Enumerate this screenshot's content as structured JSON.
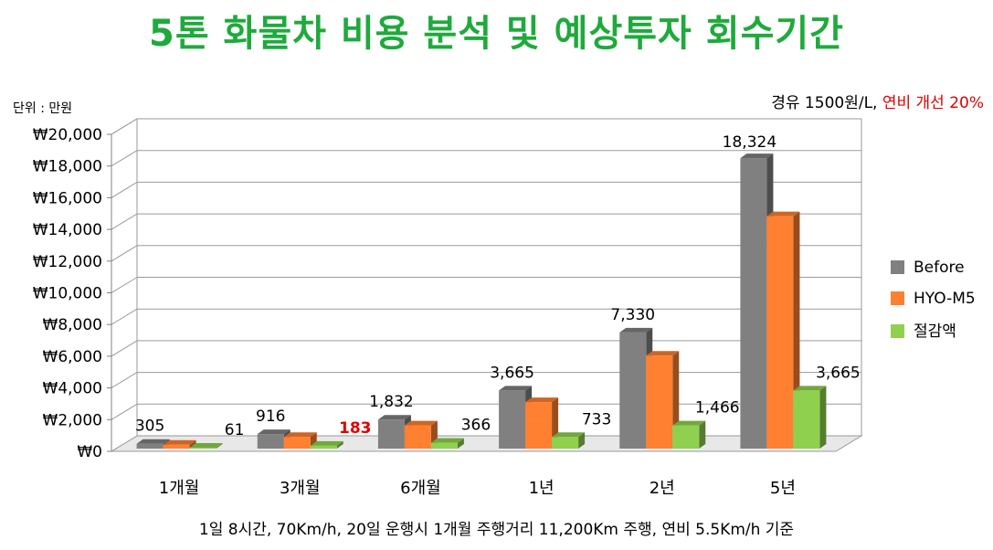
{
  "title": "5톤 화물차 비용 분석 및 예상투자 회수기간",
  "unit_label": "단위 : 만원",
  "condition": {
    "fuel": "경유 1500원/L, ",
    "improvement": "연비 개선 20%"
  },
  "footnote": "1일 8시간, 70Km/h, 20일 운행시 1개월 주행거리 11,200Km 주행, 연비 5.5Km/h 기준",
  "colors": {
    "title": "#1eaa3c",
    "before": "#808080",
    "hyo": "#ff8030",
    "saving": "#8fd14f",
    "highlight": "#e00000"
  },
  "chart_data": {
    "type": "bar",
    "categories": [
      "1개월",
      "3개월",
      "6개월",
      "1년",
      "2년",
      "5년"
    ],
    "ylim": [
      0,
      20000
    ],
    "ytick_step": 2000,
    "ytick_labels": [
      "₩0",
      "₩2,000",
      "₩4,000",
      "₩6,000",
      "₩8,000",
      "₩10,000",
      "₩12,000",
      "₩14,000",
      "₩16,000",
      "₩18,000",
      "₩20,000"
    ],
    "series": [
      {
        "name": "Before",
        "values": [
          305,
          916,
          1832,
          3665,
          7330,
          18324
        ]
      },
      {
        "name": "HYO-M5",
        "values": [
          244,
          733,
          1466,
          2932,
          5864,
          14659
        ]
      },
      {
        "name": "절감액",
        "values": [
          61,
          183,
          366,
          733,
          1466,
          3665
        ]
      }
    ],
    "data_labels": [
      {
        "series": 0,
        "index": 0,
        "text": "305"
      },
      {
        "series": 2,
        "index": 0,
        "text": "61"
      },
      {
        "series": 0,
        "index": 1,
        "text": "916"
      },
      {
        "series": 2,
        "index": 1,
        "text": "183",
        "highlight": true
      },
      {
        "series": 0,
        "index": 2,
        "text": "1,832"
      },
      {
        "series": 2,
        "index": 2,
        "text": "366"
      },
      {
        "series": 0,
        "index": 3,
        "text": "3,665"
      },
      {
        "series": 2,
        "index": 3,
        "text": "733"
      },
      {
        "series": 0,
        "index": 4,
        "text": "7,330"
      },
      {
        "series": 2,
        "index": 4,
        "text": "1,466"
      },
      {
        "series": 0,
        "index": 5,
        "text": "18,324"
      },
      {
        "series": 2,
        "index": 5,
        "text": "3,665"
      }
    ],
    "legend_position": "right"
  }
}
